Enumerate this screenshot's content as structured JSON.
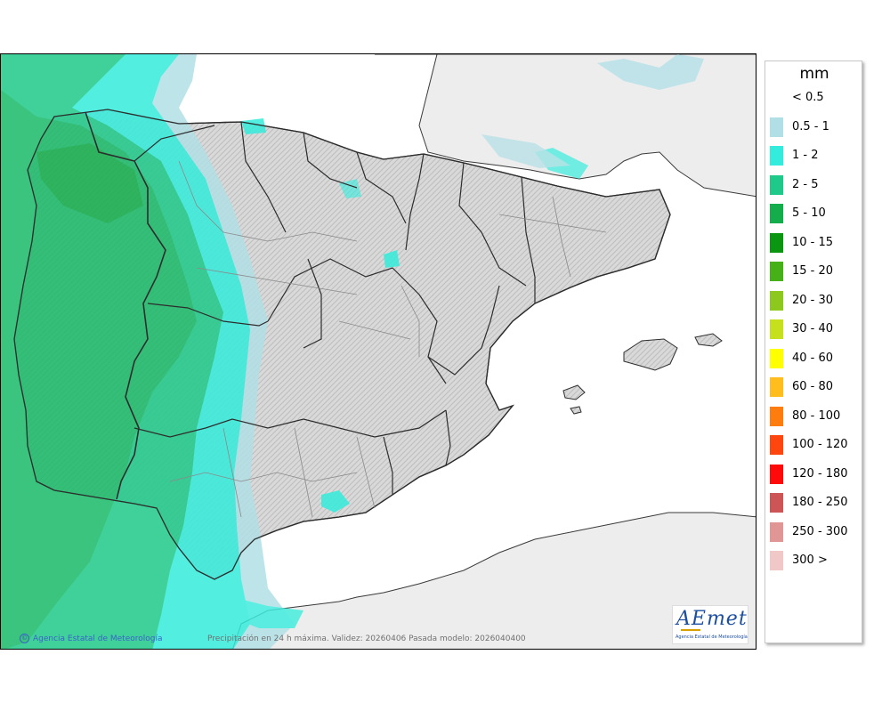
{
  "map": {
    "region": "Iberian Peninsula and Balearic Islands",
    "caption": "Precipitación en 24 h máxima. Validez: 20260406 Pasada modelo: 2026040400",
    "credit": "Agencia Estatal de Meteorología",
    "colors": {
      "sea": "#ffffff",
      "land_outside": "#ededed",
      "relief": "#cfcfcf",
      "coast": "#3a3a3a",
      "borders": "#404040",
      "provinces": "#8a8a8a"
    }
  },
  "legend": {
    "unit": "mm",
    "entries": [
      {
        "label": "< 0.5",
        "color": "#ffffff"
      },
      {
        "label": "0.5 - 1",
        "color": "#b0dfe5"
      },
      {
        "label": "1 - 2",
        "color": "#33ecdc"
      },
      {
        "label": "2 - 5",
        "color": "#1ec98a"
      },
      {
        "label": "5 - 10",
        "color": "#14ad4b"
      },
      {
        "label": "10 - 15",
        "color": "#0a9610"
      },
      {
        "label": "15 - 20",
        "color": "#45b018"
      },
      {
        "label": "20 - 30",
        "color": "#8cc81e"
      },
      {
        "label": "30 - 40",
        "color": "#c6e01e"
      },
      {
        "label": "40 - 60",
        "color": "#ffff00"
      },
      {
        "label": "60 - 80",
        "color": "#ffbe1e"
      },
      {
        "label": "80 - 100",
        "color": "#ff7d0f"
      },
      {
        "label": "100 - 120",
        "color": "#ff460f"
      },
      {
        "label": "120 - 180",
        "color": "#ff0a0a"
      },
      {
        "label": "180 - 250",
        "color": "#cd5555"
      },
      {
        "label": "250 - 300",
        "color": "#e19696"
      },
      {
        "label": "300 >",
        "color": "#f0c8c8"
      }
    ]
  },
  "logo": {
    "text": "AEmet",
    "subtitle": "Agencia Estatal de Meteorología"
  }
}
